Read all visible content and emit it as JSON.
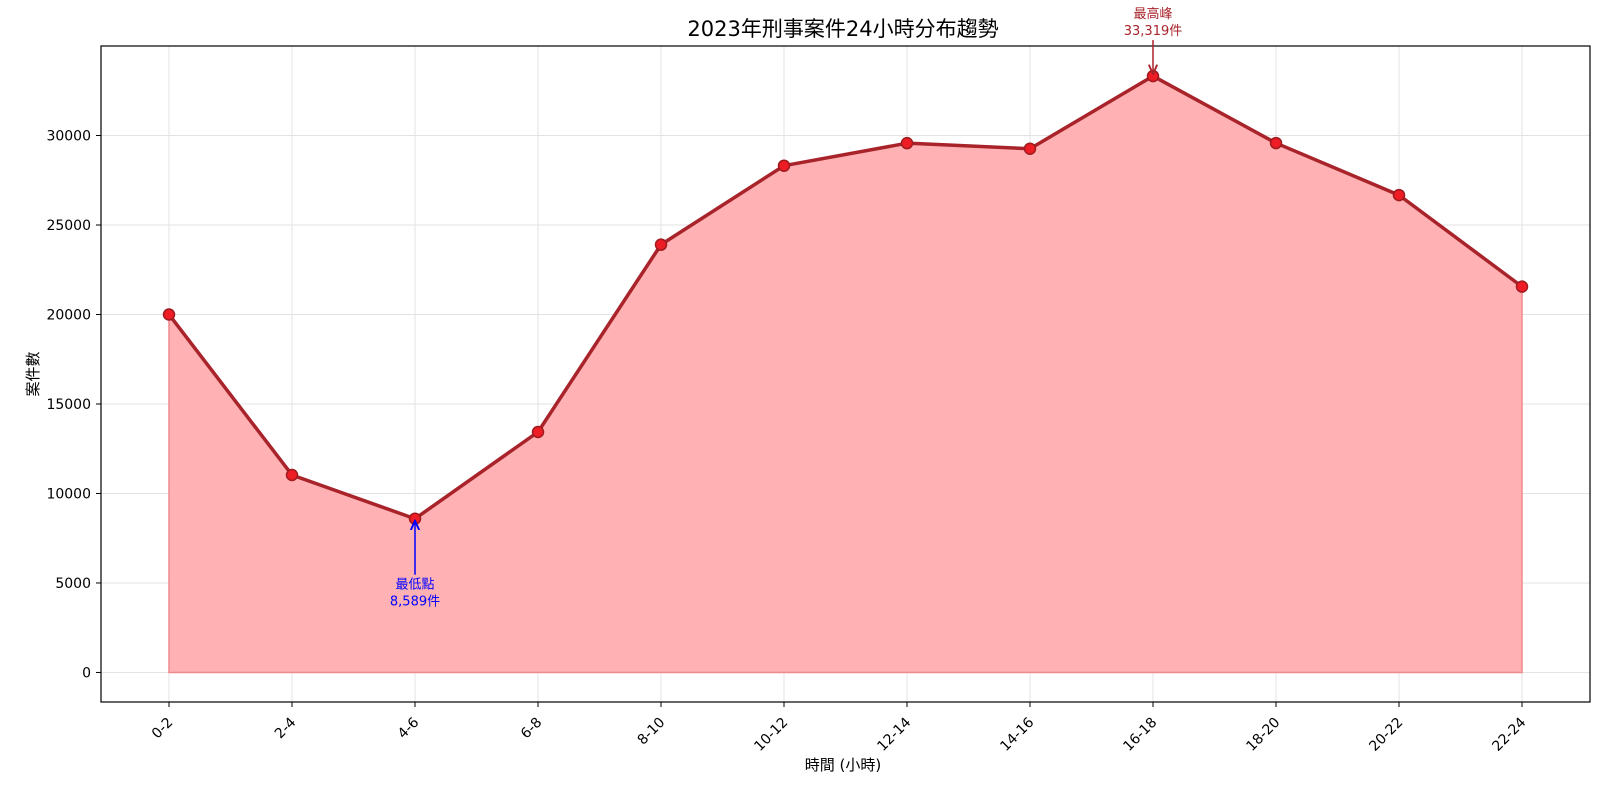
{
  "chart_data": {
    "type": "area",
    "title": "2023年刑事案件24小時分布趨勢",
    "xlabel": "時間 (小時)",
    "ylabel": "案件數",
    "categories": [
      "0-2",
      "2-4",
      "4-6",
      "6-8",
      "8-10",
      "10-12",
      "12-14",
      "14-16",
      "16-18",
      "18-20",
      "20-22",
      "22-24"
    ],
    "values": [
      20000,
      11033,
      8589,
      13435,
      23902,
      28312,
      29571,
      29262,
      33319,
      29577,
      26670,
      21556
    ],
    "ylim": [
      -1650,
      35000
    ],
    "yticks": [
      0,
      5000,
      10000,
      15000,
      20000,
      25000,
      30000
    ],
    "grid": true,
    "colors": {
      "line": "#a8232a",
      "fill": "#ffb1b3",
      "marker_fill": "#ee1c24",
      "marker_edge": "#9e1b1f",
      "peak": "#a8232a",
      "low": "#0000ff"
    },
    "annotations": [
      {
        "name": "peak",
        "category": "16-18",
        "value": 33319,
        "line1": "最高峰",
        "line2": "33,319件",
        "position": "above"
      },
      {
        "name": "low",
        "category": "4-6",
        "value": 8589,
        "line1": "最低點",
        "line2": "8,589件",
        "position": "below"
      }
    ]
  }
}
